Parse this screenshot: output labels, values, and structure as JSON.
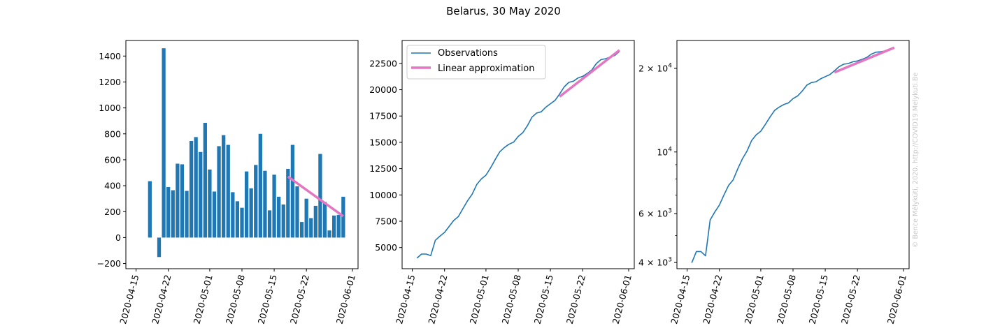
{
  "figure": {
    "title": "Belarus, 30 May 2020",
    "credit": "© Bence Mélykúti, 2020. http://COVID19.Melykuti.Be"
  },
  "colors": {
    "observations": "#1f77b4",
    "approximation": "#e377c2"
  },
  "chart_data": [
    {
      "type": "bar",
      "x": [
        "2020-04-18",
        "2020-04-19",
        "2020-04-20",
        "2020-04-21",
        "2020-04-22",
        "2020-04-23",
        "2020-04-24",
        "2020-04-25",
        "2020-04-26",
        "2020-04-27",
        "2020-04-28",
        "2020-04-29",
        "2020-04-30",
        "2020-05-01",
        "2020-05-02",
        "2020-05-03",
        "2020-05-04",
        "2020-05-05",
        "2020-05-06",
        "2020-05-07",
        "2020-05-08",
        "2020-05-09",
        "2020-05-10",
        "2020-05-11",
        "2020-05-12",
        "2020-05-13",
        "2020-05-14",
        "2020-05-15",
        "2020-05-16",
        "2020-05-17",
        "2020-05-18",
        "2020-05-19",
        "2020-05-20",
        "2020-05-21",
        "2020-05-22",
        "2020-05-23",
        "2020-05-24",
        "2020-05-25",
        "2020-05-26",
        "2020-05-27",
        "2020-05-28",
        "2020-05-29",
        "2020-05-30"
      ],
      "series": [
        {
          "name": "Observations",
          "values": [
            435,
            0,
            -150,
            1460,
            390,
            365,
            570,
            565,
            360,
            745,
            775,
            660,
            885,
            525,
            355,
            705,
            790,
            715,
            350,
            280,
            230,
            510,
            380,
            560,
            800,
            515,
            210,
            485,
            315,
            255,
            530,
            715,
            395,
            120,
            300,
            150,
            245,
            645,
            275,
            55,
            170,
            175,
            315
          ]
        },
        {
          "name": "Linear approximation",
          "x": [
            "2020-05-18",
            "2020-05-30"
          ],
          "values": [
            470,
            165
          ]
        }
      ],
      "xticks": [
        "2020-04-15",
        "2020-04-22",
        "2020-05-01",
        "2020-05-08",
        "2020-05-15",
        "2020-05-22",
        "2020-06-01"
      ],
      "yticks": [
        "−200",
        "0",
        "200",
        "400",
        "600",
        "800",
        "1000",
        "1200",
        "1400"
      ],
      "xlim": [
        "2020-04-14",
        "2020-06-01"
      ],
      "ylim": [
        -240,
        1520
      ]
    },
    {
      "type": "line",
      "x": [
        "2020-04-16",
        "2020-04-17",
        "2020-04-18",
        "2020-04-19",
        "2020-04-20",
        "2020-04-21",
        "2020-04-22",
        "2020-04-23",
        "2020-04-24",
        "2020-04-25",
        "2020-04-26",
        "2020-04-27",
        "2020-04-28",
        "2020-04-29",
        "2020-04-30",
        "2020-05-01",
        "2020-05-02",
        "2020-05-03",
        "2020-05-04",
        "2020-05-05",
        "2020-05-06",
        "2020-05-07",
        "2020-05-08",
        "2020-05-09",
        "2020-05-10",
        "2020-05-11",
        "2020-05-12",
        "2020-05-13",
        "2020-05-14",
        "2020-05-15",
        "2020-05-16",
        "2020-05-17",
        "2020-05-18",
        "2020-05-19",
        "2020-05-20",
        "2020-05-21",
        "2020-05-22",
        "2020-05-23",
        "2020-05-24",
        "2020-05-25",
        "2020-05-26",
        "2020-05-27",
        "2020-05-28",
        "2020-05-29",
        "2020-05-30"
      ],
      "series": [
        {
          "name": "Observations",
          "values": [
            3990,
            4380,
            4380,
            4230,
            5690,
            6080,
            6440,
            7010,
            7575,
            7935,
            8700,
            9445,
            10075,
            10995,
            11520,
            11880,
            12570,
            13355,
            14110,
            14510,
            14820,
            15015,
            15560,
            15920,
            16580,
            17400,
            17780,
            17900,
            18340,
            18670,
            18990,
            19600,
            20270,
            20700,
            20815,
            21120,
            21270,
            21550,
            21880,
            22500,
            22860,
            22950,
            23100,
            23260,
            23640
          ]
        },
        {
          "name": "Linear approximation",
          "x": [
            "2020-05-17",
            "2020-05-30"
          ],
          "values": [
            19350,
            23760
          ]
        }
      ],
      "legend": [
        "Observations",
        "Linear approximation"
      ],
      "legend_position": "top-left",
      "xticks": [
        "2020-04-15",
        "2020-04-22",
        "2020-05-01",
        "2020-05-08",
        "2020-05-15",
        "2020-05-22",
        "2020-06-01"
      ],
      "yticks": [
        "5000",
        "7500",
        "10000",
        "12500",
        "15000",
        "17500",
        "20000",
        "22500"
      ],
      "xlim": [
        "2020-04-14",
        "2020-06-01"
      ],
      "ylim": [
        2990,
        24680
      ]
    },
    {
      "type": "line",
      "yscale": "log",
      "x": [
        "2020-04-16",
        "2020-04-17",
        "2020-04-18",
        "2020-04-19",
        "2020-04-20",
        "2020-04-21",
        "2020-04-22",
        "2020-04-23",
        "2020-04-24",
        "2020-04-25",
        "2020-04-26",
        "2020-04-27",
        "2020-04-28",
        "2020-04-29",
        "2020-04-30",
        "2020-05-01",
        "2020-05-02",
        "2020-05-03",
        "2020-05-04",
        "2020-05-05",
        "2020-05-06",
        "2020-05-07",
        "2020-05-08",
        "2020-05-09",
        "2020-05-10",
        "2020-05-11",
        "2020-05-12",
        "2020-05-13",
        "2020-05-14",
        "2020-05-15",
        "2020-05-16",
        "2020-05-17",
        "2020-05-18",
        "2020-05-19",
        "2020-05-20",
        "2020-05-21",
        "2020-05-22",
        "2020-05-23",
        "2020-05-24",
        "2020-05-25",
        "2020-05-26",
        "2020-05-27",
        "2020-05-28",
        "2020-05-29",
        "2020-05-30"
      ],
      "series": [
        {
          "name": "Observations",
          "values": [
            3990,
            4380,
            4380,
            4230,
            5690,
            6080,
            6440,
            7010,
            7575,
            7935,
            8700,
            9445,
            10075,
            10995,
            11520,
            11880,
            12570,
            13355,
            14110,
            14510,
            14820,
            15015,
            15560,
            15920,
            16580,
            17400,
            17780,
            17900,
            18340,
            18670,
            18990,
            19600,
            20270,
            20700,
            20815,
            21120,
            21270,
            21550,
            21880,
            22500,
            22860,
            22950,
            23100,
            23260,
            23640
          ]
        },
        {
          "name": "Linear approximation",
          "x": [
            "2020-05-17",
            "2020-05-30"
          ],
          "values": [
            19350,
            23760
          ]
        }
      ],
      "xticks": [
        "2020-04-15",
        "2020-04-22",
        "2020-05-01",
        "2020-05-08",
        "2020-05-15",
        "2020-05-22",
        "2020-06-01"
      ],
      "yticks": [
        {
          "value": 4000,
          "mant": "4",
          "exp": "3",
          "label": "4 × 10^3"
        },
        {
          "value": 6000,
          "mant": "6",
          "exp": "3",
          "label": "6 × 10^3"
        },
        {
          "value": 10000,
          "mant": "",
          "exp": "4",
          "label": "10^4"
        },
        {
          "value": 20000,
          "mant": "2",
          "exp": "4",
          "label": "2 × 10^4"
        }
      ],
      "ylim": [
        3800,
        25200
      ]
    }
  ]
}
